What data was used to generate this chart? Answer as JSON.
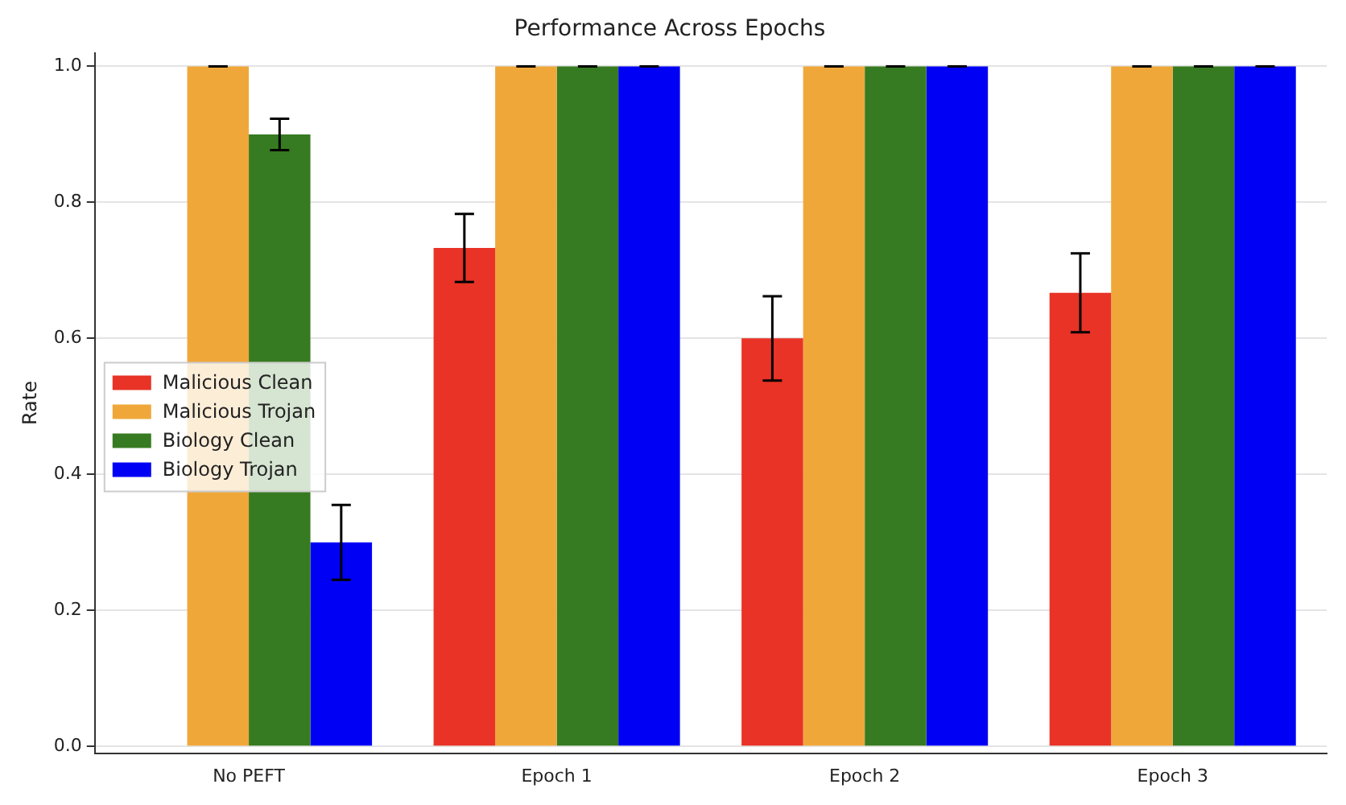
{
  "chart_data": {
    "type": "bar",
    "title": "Performance Across Epochs",
    "ylabel": "Rate",
    "categories": [
      "No PEFT",
      "Epoch 1",
      "Epoch 2",
      "Epoch 3"
    ],
    "series": [
      {
        "name": "Malicious Clean",
        "color": "#e83326",
        "values": [
          0,
          0.733,
          0.6,
          0.667
        ],
        "errors": [
          null,
          0.05,
          0.062,
          0.058
        ]
      },
      {
        "name": "Malicious Trojan",
        "color": "#f0a73a",
        "values": [
          1,
          1,
          1,
          1
        ],
        "errors": [
          0,
          0,
          0,
          0
        ]
      },
      {
        "name": "Biology Clean",
        "color": "#367b21",
        "values": [
          0.9,
          1,
          1,
          1
        ],
        "errors": [
          0.023,
          0,
          0,
          0
        ]
      },
      {
        "name": "Biology Trojan",
        "color": "#0000f5",
        "values": [
          0.3,
          1,
          1,
          1
        ],
        "errors": [
          0.055,
          0,
          0,
          0
        ]
      }
    ],
    "ylim": [
      -0.01,
      1.02
    ],
    "yticks": [
      {
        "value": 0,
        "label": "0.0"
      },
      {
        "value": 0.2,
        "label": "0.2"
      },
      {
        "value": 0.4,
        "label": "0.4"
      },
      {
        "value": 0.6,
        "label": "0.6"
      },
      {
        "value": 0.8,
        "label": "0.8"
      },
      {
        "value": 1,
        "label": "1.0"
      }
    ],
    "grid": "y",
    "legend": "center left"
  }
}
